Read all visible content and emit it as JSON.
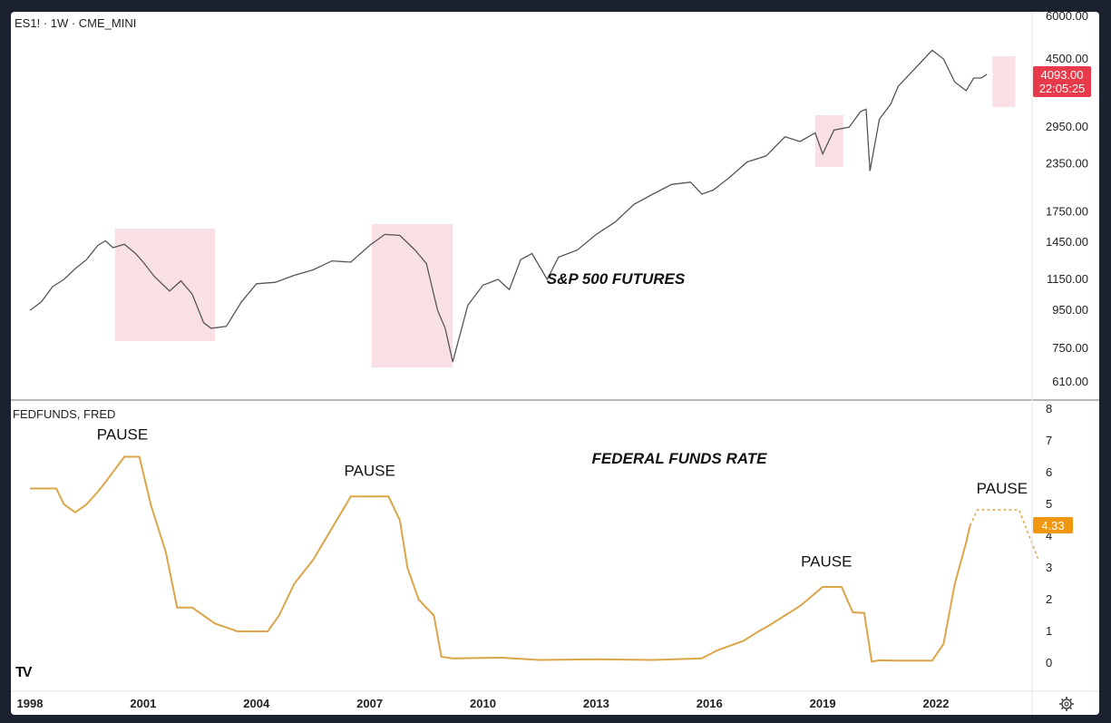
{
  "colors": {
    "background": "#ffffff",
    "price_line": "#555555",
    "highlight": "#f9e0e4",
    "fedfunds_line": "#dba549",
    "price_tag": "#e83a4b",
    "rate_tag": "#f0960f"
  },
  "logo": "TV",
  "settings_icon": "gear-icon",
  "chart_data": [
    {
      "type": "line",
      "symbol_label": "ES1! · 1W · CME_MINI",
      "title": "S&P 500 FUTURES",
      "y_scale": "log",
      "ylim": [
        600,
        6000
      ],
      "y_ticks": [
        "6000.00",
        "4500.00",
        "2950.00",
        "2350.00",
        "1750.00",
        "1450.00",
        "1150.00",
        "950.00",
        "750.00",
        "610.00"
      ],
      "last_price": "4093.00",
      "countdown": "22:05:25",
      "highlights": [
        {
          "x": [
            2000.25,
            2002.9
          ]
        },
        {
          "x": [
            2007.05,
            2009.2
          ]
        },
        {
          "x": [
            2018.8,
            2019.55
          ]
        },
        {
          "x": [
            2023.5,
            2024.1
          ]
        }
      ],
      "x": [
        1998.0,
        1998.3,
        1998.6,
        1998.9,
        1999.2,
        1999.5,
        1999.8,
        2000.0,
        2000.2,
        2000.5,
        2000.8,
        2001.0,
        2001.3,
        2001.7,
        2002.0,
        2002.3,
        2002.6,
        2002.8,
        2003.2,
        2003.6,
        2004.0,
        2004.5,
        2005.0,
        2005.5,
        2006.0,
        2006.5,
        2007.0,
        2007.4,
        2007.8,
        2008.2,
        2008.5,
        2008.8,
        2009.0,
        2009.2,
        2009.6,
        2010.0,
        2010.4,
        2010.7,
        2011.0,
        2011.3,
        2011.7,
        2012.0,
        2012.5,
        2013.0,
        2013.5,
        2014.0,
        2014.5,
        2015.0,
        2015.5,
        2015.8,
        2016.1,
        2016.5,
        2017.0,
        2017.5,
        2018.0,
        2018.4,
        2018.8,
        2019.0,
        2019.3,
        2019.7,
        2020.0,
        2020.15,
        2020.25,
        2020.5,
        2020.8,
        2021.0,
        2021.5,
        2021.9,
        2022.2,
        2022.5,
        2022.8,
        2023.0,
        2023.2,
        2023.35
      ],
      "values": [
        950,
        1000,
        1100,
        1150,
        1230,
        1300,
        1420,
        1460,
        1400,
        1430,
        1350,
        1280,
        1170,
        1070,
        1140,
        1050,
        880,
        850,
        860,
        1000,
        1120,
        1130,
        1180,
        1220,
        1290,
        1280,
        1420,
        1520,
        1510,
        1380,
        1270,
        950,
        850,
        690,
        980,
        1110,
        1150,
        1080,
        1300,
        1350,
        1150,
        1320,
        1380,
        1520,
        1640,
        1830,
        1950,
        2070,
        2100,
        1950,
        2000,
        2150,
        2380,
        2470,
        2780,
        2700,
        2850,
        2500,
        2900,
        2950,
        3250,
        3300,
        2250,
        3100,
        3400,
        3800,
        4300,
        4750,
        4500,
        3900,
        3700,
        4000,
        4000,
        4093
      ]
    },
    {
      "type": "line",
      "symbol_label": "FEDFUNDS, FRED",
      "title": "FEDERAL FUNDS RATE",
      "ylim": [
        -0.5,
        8
      ],
      "y_ticks": [
        "8",
        "7",
        "6",
        "5",
        "4",
        "3",
        "2",
        "1",
        "0"
      ],
      "last_value": "4.33",
      "x": [
        1998.0,
        1998.7,
        1998.9,
        1999.2,
        1999.5,
        1999.8,
        2000.0,
        2000.5,
        2000.9,
        2001.2,
        2001.6,
        2001.9,
        2002.3,
        2002.9,
        2003.5,
        2004.3,
        2004.6,
        2005.0,
        2005.5,
        2006.0,
        2006.5,
        2007.5,
        2007.8,
        2008.0,
        2008.3,
        2008.7,
        2008.9,
        2009.2,
        2010.5,
        2011.5,
        2013.0,
        2014.5,
        2015.8,
        2016.2,
        2016.9,
        2017.3,
        2017.6,
        2018.0,
        2018.4,
        2018.8,
        2019.0,
        2019.5,
        2019.8,
        2020.1,
        2020.3,
        2020.5,
        2021.0,
        2021.9,
        2022.2,
        2022.5,
        2022.8,
        2022.9
      ],
      "values": [
        5.5,
        5.5,
        5.0,
        4.75,
        5.0,
        5.4,
        5.7,
        6.5,
        6.5,
        5.0,
        3.5,
        1.75,
        1.75,
        1.25,
        1.0,
        1.0,
        1.5,
        2.5,
        3.25,
        4.25,
        5.25,
        5.25,
        4.5,
        3.0,
        2.0,
        1.5,
        0.2,
        0.15,
        0.17,
        0.1,
        0.12,
        0.1,
        0.15,
        0.4,
        0.7,
        1.0,
        1.2,
        1.5,
        1.8,
        2.2,
        2.4,
        2.4,
        1.6,
        1.58,
        0.05,
        0.09,
        0.08,
        0.08,
        0.6,
        2.5,
        3.8,
        4.33
      ],
      "projection": {
        "x": [
          2022.9,
          2023.1,
          2024.2,
          2024.7
        ],
        "values": [
          4.33,
          4.83,
          4.83,
          3.3
        ]
      },
      "annotations": [
        {
          "text": "PAUSE",
          "x": 2000.45,
          "y": 7.05
        },
        {
          "text": "PAUSE",
          "x": 2007.0,
          "y": 5.9
        },
        {
          "text": "PAUSE",
          "x": 2019.1,
          "y": 3.05
        },
        {
          "text": "PAUSE",
          "x": 2023.75,
          "y": 5.35
        }
      ]
    }
  ],
  "x_axis": {
    "ticks": [
      1998,
      2001,
      2004,
      2007,
      2010,
      2013,
      2016,
      2019,
      2022
    ],
    "labels": [
      "1998",
      "2001",
      "2004",
      "2007",
      "2010",
      "2013",
      "2016",
      "2019",
      "2022"
    ]
  }
}
